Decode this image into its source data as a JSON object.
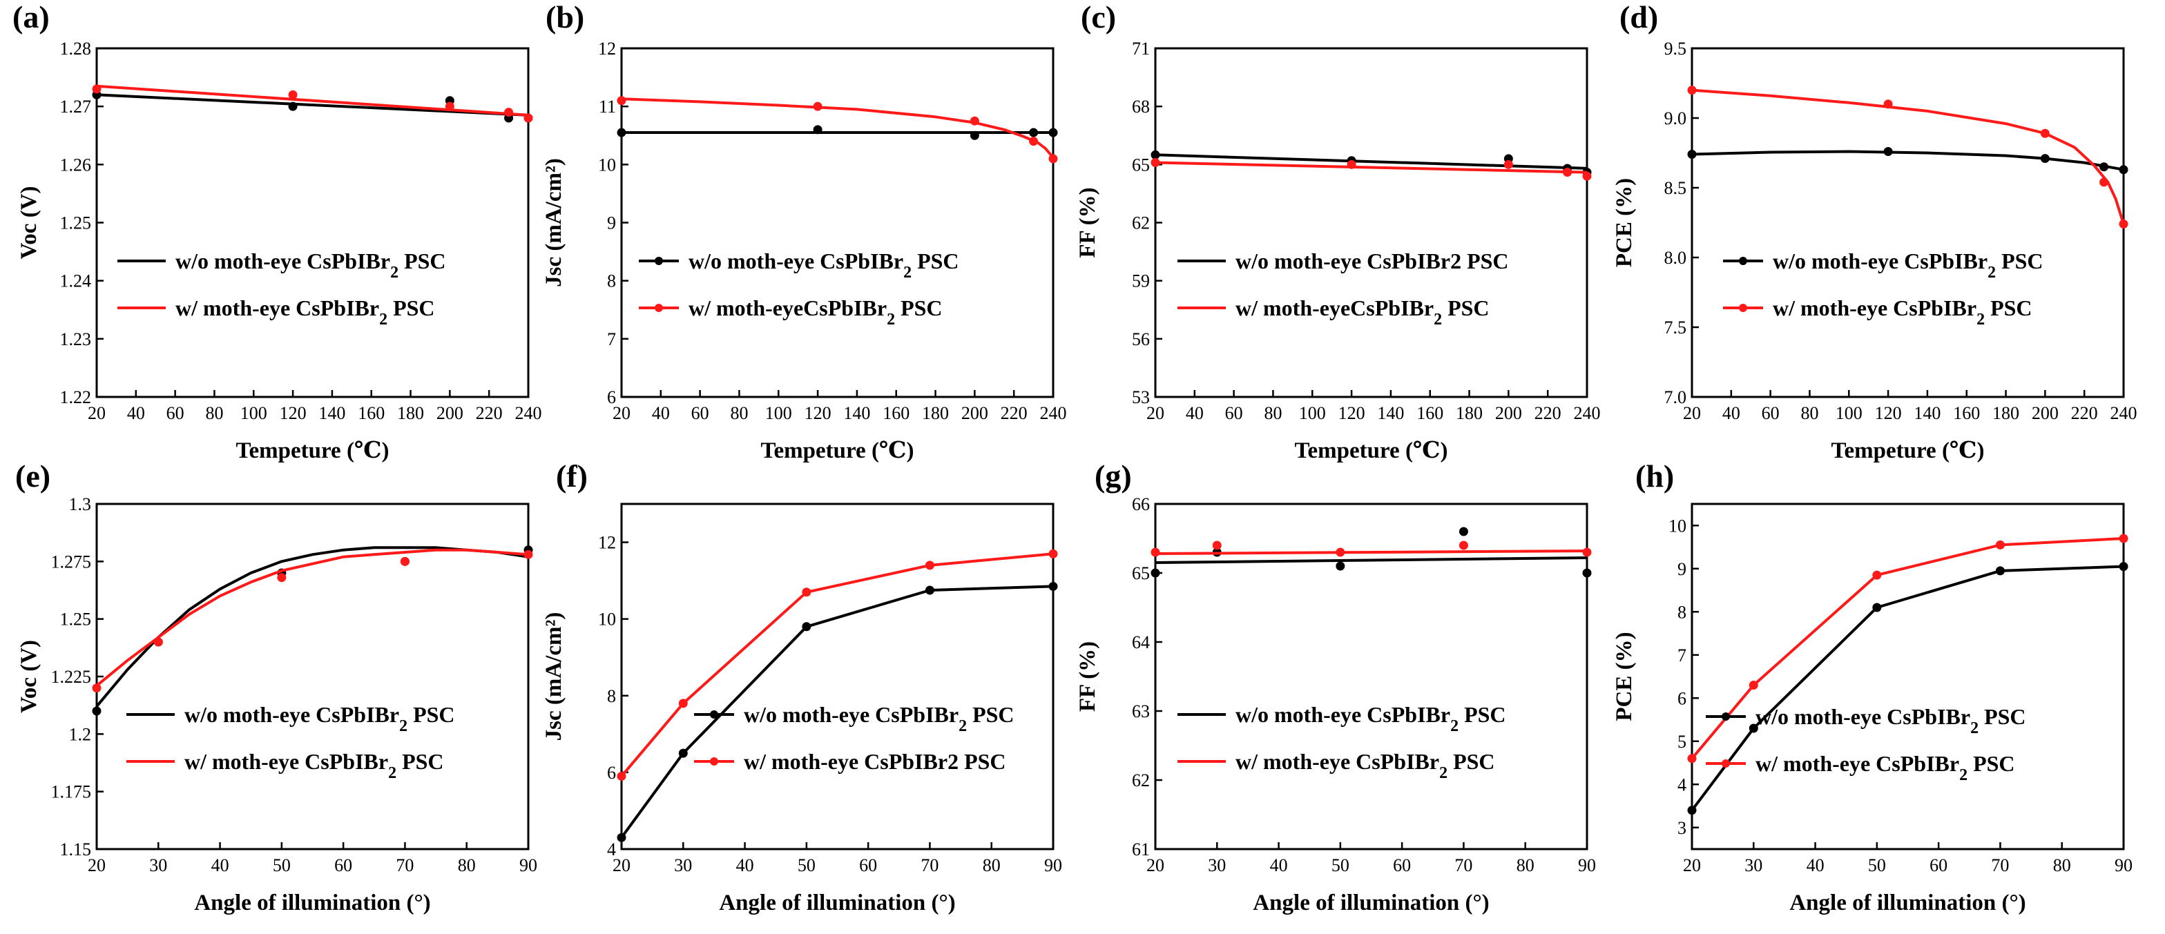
{
  "colors": {
    "without": "#000000",
    "with": "#ff1a1a"
  },
  "chart_data": [
    {
      "panel": "(a)",
      "type": "line",
      "xlabel": "Tempeture (℃)",
      "ylabel": "Voc (V)",
      "xlim": [
        20,
        240
      ],
      "ylim": [
        1.22,
        1.28
      ],
      "xticks": [
        20,
        40,
        60,
        80,
        100,
        120,
        140,
        160,
        180,
        200,
        220,
        240
      ],
      "xtick_labels": [
        "20",
        "40",
        "60",
        "80",
        "100",
        "120",
        "140",
        "160",
        "180",
        "200",
        "220",
        "240"
      ],
      "yticks": [
        1.22,
        1.23,
        1.24,
        1.25,
        1.26,
        1.27,
        1.28
      ],
      "ytick_labels": [
        "1.22",
        "1.23",
        "1.24",
        "1.25",
        "1.26",
        "1.27",
        "1.28"
      ],
      "legend": [
        {
          "prefix": "w/o moth-eye CsPbIBr",
          "sub": "2",
          "suffix": " PSC"
        },
        {
          "prefix": "w/   moth-eye CsPbIBr",
          "sub": "2",
          "suffix": " PSC"
        }
      ],
      "legend_markers": false,
      "series": [
        {
          "name": "w/o moth-eye",
          "color_key": "without",
          "x": [
            20,
            120,
            200,
            230,
            240
          ],
          "y": [
            1.272,
            1.27,
            1.271,
            1.268,
            1.268
          ],
          "fit_x": [
            20,
            240
          ],
          "fit_y": [
            1.272,
            1.2685
          ]
        },
        {
          "name": "w/ moth-eye",
          "color_key": "with",
          "x": [
            20,
            120,
            200,
            230,
            240
          ],
          "y": [
            1.273,
            1.272,
            1.27,
            1.269,
            1.268
          ],
          "fit_x": [
            20,
            240
          ],
          "fit_y": [
            1.2735,
            1.2685
          ]
        }
      ]
    },
    {
      "panel": "(b)",
      "type": "line",
      "xlabel": "Tempeture (℃)",
      "ylabel": "Jsc (mA/cm²)",
      "xlim": [
        20,
        240
      ],
      "ylim": [
        6,
        12
      ],
      "xticks": [
        20,
        40,
        60,
        80,
        100,
        120,
        140,
        160,
        180,
        200,
        220,
        240
      ],
      "xtick_labels": [
        "20",
        "40",
        "60",
        "80",
        "100",
        "120",
        "140",
        "160",
        "180",
        "200",
        "220",
        "240"
      ],
      "yticks": [
        6,
        7,
        8,
        9,
        10,
        11,
        12
      ],
      "ytick_labels": [
        "6",
        "7",
        "8",
        "9",
        "10",
        "11",
        "12"
      ],
      "legend": [
        {
          "prefix": "w/o moth-eye CsPbIBr",
          "sub": "2",
          "suffix": " PSC"
        },
        {
          "prefix": "w/   moth-eyeCsPbIBr",
          "sub": "2",
          "suffix": " PSC"
        }
      ],
      "legend_markers": true,
      "series": [
        {
          "name": "w/o moth-eye",
          "color_key": "without",
          "x": [
            20,
            120,
            200,
            230,
            240
          ],
          "y": [
            10.55,
            10.6,
            10.5,
            10.55,
            10.55
          ],
          "fit_x": [
            20,
            240
          ],
          "fit_y": [
            10.55,
            10.55
          ]
        },
        {
          "name": "w/ moth-eye",
          "color_key": "with",
          "x": [
            20,
            120,
            200,
            230,
            240
          ],
          "y": [
            11.1,
            11.0,
            10.75,
            10.4,
            10.1
          ],
          "fit_x": [
            20,
            60,
            100,
            140,
            180,
            200,
            215,
            225,
            232,
            236,
            240
          ],
          "fit_y": [
            11.13,
            11.08,
            11.02,
            10.95,
            10.82,
            10.72,
            10.6,
            10.48,
            10.38,
            10.28,
            10.12
          ]
        }
      ]
    },
    {
      "panel": "(c)",
      "type": "line",
      "xlabel": "Tempeture (℃)",
      "ylabel": "FF (%)",
      "xlim": [
        20,
        240
      ],
      "ylim": [
        53,
        71
      ],
      "xticks": [
        20,
        40,
        60,
        80,
        100,
        120,
        140,
        160,
        180,
        200,
        220,
        240
      ],
      "xtick_labels": [
        "20",
        "40",
        "60",
        "80",
        "100",
        "120",
        "140",
        "160",
        "180",
        "200",
        "220",
        "240"
      ],
      "yticks": [
        53,
        56,
        59,
        62,
        65,
        68,
        71
      ],
      "ytick_labels": [
        "53",
        "56",
        "59",
        "62",
        "65",
        "68",
        "71"
      ],
      "legend": [
        {
          "prefix": "w/o moth-eye CsPbIBr2 PSC",
          "sub": "",
          "suffix": ""
        },
        {
          "prefix": "w/   moth-eyeCsPbIBr",
          "sub": "2",
          "suffix": " PSC"
        }
      ],
      "legend_markers": false,
      "series": [
        {
          "name": "w/o moth-eye",
          "color_key": "without",
          "x": [
            20,
            120,
            200,
            230,
            240
          ],
          "y": [
            65.5,
            65.2,
            65.3,
            64.8,
            64.6
          ],
          "fit_x": [
            20,
            240
          ],
          "fit_y": [
            65.5,
            64.8
          ]
        },
        {
          "name": "w/ moth-eye",
          "color_key": "with",
          "x": [
            20,
            120,
            200,
            230,
            240
          ],
          "y": [
            65.1,
            65.0,
            65.0,
            64.6,
            64.4
          ],
          "fit_x": [
            20,
            240
          ],
          "fit_y": [
            65.1,
            64.6
          ]
        }
      ]
    },
    {
      "panel": "(d)",
      "type": "line",
      "xlabel": "Tempeture (℃)",
      "ylabel": "PCE (%)",
      "xlim": [
        20,
        240
      ],
      "ylim": [
        7.0,
        9.5
      ],
      "xticks": [
        20,
        40,
        60,
        80,
        100,
        120,
        140,
        160,
        180,
        200,
        220,
        240
      ],
      "xtick_labels": [
        "20",
        "40",
        "60",
        "80",
        "100",
        "120",
        "140",
        "160",
        "180",
        "200",
        "220",
        "240"
      ],
      "yticks": [
        7.0,
        7.5,
        8.0,
        8.5,
        9.0,
        9.5
      ],
      "ytick_labels": [
        "7.0",
        "7.5",
        "8.0",
        "8.5",
        "9.0",
        "9.5"
      ],
      "legend": [
        {
          "prefix": "w/o moth-eye CsPbIBr",
          "sub": "2",
          "suffix": " PSC"
        },
        {
          "prefix": "w/    moth-eye CsPbIBr",
          "sub": "2",
          "suffix": " PSC"
        }
      ],
      "legend_markers": true,
      "series": [
        {
          "name": "w/o moth-eye",
          "color_key": "without",
          "x": [
            20,
            120,
            200,
            230,
            240
          ],
          "y": [
            8.74,
            8.76,
            8.71,
            8.65,
            8.63
          ],
          "fit_x": [
            20,
            60,
            100,
            140,
            180,
            200,
            220,
            240
          ],
          "fit_y": [
            8.74,
            8.755,
            8.76,
            8.75,
            8.73,
            8.71,
            8.68,
            8.63
          ]
        },
        {
          "name": "w/ moth-eye",
          "color_key": "with",
          "x": [
            20,
            120,
            200,
            230,
            240
          ],
          "y": [
            9.2,
            9.1,
            8.89,
            8.54,
            8.24
          ],
          "fit_x": [
            20,
            60,
            100,
            140,
            180,
            200,
            215,
            225,
            232,
            236,
            240
          ],
          "fit_y": [
            9.2,
            9.16,
            9.11,
            9.05,
            8.96,
            8.89,
            8.79,
            8.66,
            8.54,
            8.42,
            8.24
          ]
        }
      ]
    },
    {
      "panel": "(e)",
      "type": "line",
      "xlabel": "Angle of illumination (°)",
      "ylabel": "Voc (V)",
      "xlim": [
        20,
        90
      ],
      "ylim": [
        1.15,
        1.3
      ],
      "xticks": [
        20,
        30,
        40,
        50,
        60,
        70,
        80,
        90
      ],
      "xtick_labels": [
        "20",
        "30",
        "40",
        "50",
        "60",
        "70",
        "80",
        "90"
      ],
      "yticks": [
        1.15,
        1.175,
        1.2,
        1.225,
        1.25,
        1.275,
        1.3
      ],
      "ytick_labels": [
        "1.15",
        "1.175",
        "1.2",
        "1.225",
        "1.25",
        "1.275",
        "1.3"
      ],
      "legend": [
        {
          "prefix": "w/o moth-eye CsPbIBr",
          "sub": "2",
          "suffix": " PSC"
        },
        {
          "prefix": "w/   moth-eye CsPbIBr",
          "sub": "2",
          "suffix": " PSC"
        }
      ],
      "legend_markers": false,
      "series": [
        {
          "name": "w/o moth-eye",
          "color_key": "without",
          "x": [
            20,
            30,
            50,
            70,
            90
          ],
          "y": [
            1.21,
            1.24,
            1.27,
            1.275,
            1.28
          ],
          "fit_x": [
            20,
            25,
            30,
            35,
            40,
            45,
            50,
            55,
            60,
            65,
            70,
            75,
            80,
            85,
            90
          ],
          "fit_y": [
            1.212,
            1.228,
            1.242,
            1.254,
            1.263,
            1.27,
            1.275,
            1.278,
            1.28,
            1.281,
            1.281,
            1.281,
            1.28,
            1.279,
            1.277
          ]
        },
        {
          "name": "w/ moth-eye",
          "color_key": "with",
          "x": [
            20,
            30,
            50,
            70,
            90
          ],
          "y": [
            1.22,
            1.24,
            1.268,
            1.275,
            1.278
          ],
          "fit_x": [
            20,
            25,
            30,
            35,
            40,
            45,
            50,
            55,
            60,
            65,
            70,
            75,
            80,
            85,
            90
          ],
          "fit_y": [
            1.221,
            1.232,
            1.242,
            1.252,
            1.26,
            1.266,
            1.271,
            1.274,
            1.277,
            1.278,
            1.279,
            1.28,
            1.28,
            1.279,
            1.278
          ]
        }
      ]
    },
    {
      "panel": "(f)",
      "type": "line",
      "xlabel": "Angle of illumination (°)",
      "ylabel": "Jsc (mA/cm²)",
      "xlim": [
        20,
        90
      ],
      "ylim": [
        4,
        13
      ],
      "xticks": [
        20,
        30,
        40,
        50,
        60,
        70,
        80,
        90
      ],
      "xtick_labels": [
        "20",
        "30",
        "40",
        "50",
        "60",
        "70",
        "80",
        "90"
      ],
      "yticks": [
        4,
        6,
        8,
        10,
        12
      ],
      "ytick_labels": [
        "4",
        "6",
        "8",
        "10",
        "12"
      ],
      "legend": [
        {
          "prefix": "w/o moth-eye CsPbIBr",
          "sub": "2",
          "suffix": " PSC"
        },
        {
          "prefix": "w/   moth-eye CsPbIBr2 PSC",
          "sub": "",
          "suffix": ""
        }
      ],
      "legend_markers": true,
      "series": [
        {
          "name": "w/o moth-eye",
          "color_key": "without",
          "x": [
            20,
            30,
            50,
            70,
            90
          ],
          "y": [
            4.3,
            6.5,
            9.8,
            10.75,
            10.85
          ],
          "fit_x": [
            20,
            30,
            50,
            70,
            90
          ],
          "fit_y": [
            4.3,
            6.5,
            9.8,
            10.75,
            10.85
          ]
        },
        {
          "name": "w/ moth-eye",
          "color_key": "with",
          "x": [
            20,
            30,
            50,
            70,
            90
          ],
          "y": [
            5.9,
            7.8,
            10.7,
            11.4,
            11.7
          ],
          "fit_x": [
            20,
            30,
            50,
            70,
            90
          ],
          "fit_y": [
            5.9,
            7.8,
            10.7,
            11.4,
            11.7
          ]
        }
      ]
    },
    {
      "panel": "(g)",
      "type": "line",
      "xlabel": "Angle of illumination (°)",
      "ylabel": "FF (%)",
      "xlim": [
        20,
        90
      ],
      "ylim": [
        61,
        66
      ],
      "xticks": [
        20,
        30,
        40,
        50,
        60,
        70,
        80,
        90
      ],
      "xtick_labels": [
        "20",
        "30",
        "40",
        "50",
        "60",
        "70",
        "80",
        "90"
      ],
      "yticks": [
        61,
        62,
        63,
        64,
        65,
        66
      ],
      "ytick_labels": [
        "61",
        "62",
        "63",
        "64",
        "65",
        "66"
      ],
      "legend": [
        {
          "prefix": "w/o moth-eye CsPbIBr",
          "sub": "2",
          "suffix": " PSC"
        },
        {
          "prefix": "w/   moth-eye CsPbIBr",
          "sub": "2",
          "suffix": " PSC"
        }
      ],
      "legend_markers": false,
      "series": [
        {
          "name": "w/o moth-eye",
          "color_key": "without",
          "x": [
            20,
            30,
            50,
            70,
            90
          ],
          "y": [
            65.0,
            65.3,
            65.1,
            65.6,
            65.0
          ],
          "fit_x": [
            20,
            90
          ],
          "fit_y": [
            65.15,
            65.22
          ]
        },
        {
          "name": "w/ moth-eye",
          "color_key": "with",
          "x": [
            20,
            30,
            50,
            70,
            90
          ],
          "y": [
            65.3,
            65.4,
            65.3,
            65.4,
            65.3
          ],
          "fit_x": [
            20,
            90
          ],
          "fit_y": [
            65.28,
            65.32
          ]
        }
      ]
    },
    {
      "panel": "(h)",
      "type": "line",
      "xlabel": "Angle of illumination (°)",
      "ylabel": "PCE (%)",
      "xlim": [
        20,
        90
      ],
      "ylim": [
        2.5,
        10.5
      ],
      "xticks": [
        20,
        30,
        40,
        50,
        60,
        70,
        80,
        90
      ],
      "xtick_labels": [
        "20",
        "30",
        "40",
        "50",
        "60",
        "70",
        "80",
        "90"
      ],
      "yticks": [
        3,
        4,
        5,
        6,
        7,
        8,
        9,
        10
      ],
      "ytick_labels": [
        "3",
        "4",
        "5",
        "6",
        "7",
        "8",
        "9",
        "10"
      ],
      "legend": [
        {
          "prefix": "w/o moth-eye CsPbIBr",
          "sub": "2",
          "suffix": " PSC"
        },
        {
          "prefix": "w/    moth-eye CsPbIBr",
          "sub": "2",
          "suffix": " PSC"
        }
      ],
      "legend_markers": true,
      "series": [
        {
          "name": "w/o moth-eye",
          "color_key": "without",
          "x": [
            20,
            30,
            50,
            70,
            90
          ],
          "y": [
            3.4,
            5.3,
            8.1,
            8.95,
            9.05
          ],
          "fit_x": [
            20,
            30,
            50,
            70,
            90
          ],
          "fit_y": [
            3.4,
            5.3,
            8.1,
            8.95,
            9.05
          ]
        },
        {
          "name": "w/ moth-eye",
          "color_key": "with",
          "x": [
            20,
            30,
            50,
            70,
            90
          ],
          "y": [
            4.6,
            6.3,
            8.85,
            9.55,
            9.7
          ],
          "fit_x": [
            20,
            30,
            50,
            70,
            90
          ],
          "fit_y": [
            4.6,
            6.3,
            8.85,
            9.55,
            9.7
          ]
        }
      ]
    }
  ]
}
